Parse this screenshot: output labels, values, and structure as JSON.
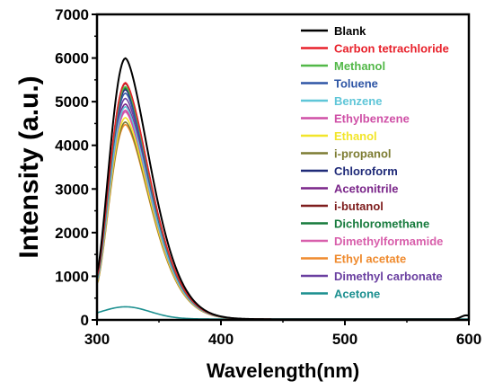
{
  "chart_data": {
    "type": "line",
    "title": "",
    "xlabel": "Wavelength(nm)",
    "ylabel": "Intensity (a.u.)",
    "xlim": [
      300,
      600
    ],
    "ylim": [
      0,
      7000
    ],
    "x_ticks": [
      300,
      400,
      500,
      600
    ],
    "y_ticks": [
      0,
      1000,
      2000,
      3000,
      4000,
      5000,
      6000,
      7000
    ],
    "grid": false,
    "legend_position": "top-right",
    "series": [
      {
        "name": "Blank",
        "color": "#000000",
        "peak": 5980
      },
      {
        "name": "Carbon tetrachloride",
        "color": "#e8212b",
        "peak": 5420
      },
      {
        "name": "Methanol",
        "color": "#52b848",
        "peak": 5330
      },
      {
        "name": "Toluene",
        "color": "#2e55a5",
        "peak": 5180
      },
      {
        "name": "Benzene",
        "color": "#5fc6d8",
        "peak": 4870
      },
      {
        "name": "Ethylbenzene",
        "color": "#cf4fa6",
        "peak": 4790
      },
      {
        "name": "Ethanol",
        "color": "#f2e52a",
        "peak": 4620
      },
      {
        "name": "i-propanol",
        "color": "#7d7c32",
        "peak": 4520
      },
      {
        "name": "Chloroform",
        "color": "#1f2a78",
        "peak": 5260
      },
      {
        "name": "Acetonitrile",
        "color": "#7a2589",
        "peak": 4930
      },
      {
        "name": "i-butanol",
        "color": "#7e1d1d",
        "peak": 5400
      },
      {
        "name": "Dichloromethane",
        "color": "#167a3c",
        "peak": 5300
      },
      {
        "name": "Dimethylformamide",
        "color": "#d85fab",
        "peak": 4750
      },
      {
        "name": "Ethyl acetate",
        "color": "#ef8a2d",
        "peak": 4460
      },
      {
        "name": "Dimethyl carbonate",
        "color": "#6a3fa0",
        "peak": 5060
      },
      {
        "name": "Acetone",
        "color": "#1b8f8f",
        "peak": 280
      }
    ]
  }
}
